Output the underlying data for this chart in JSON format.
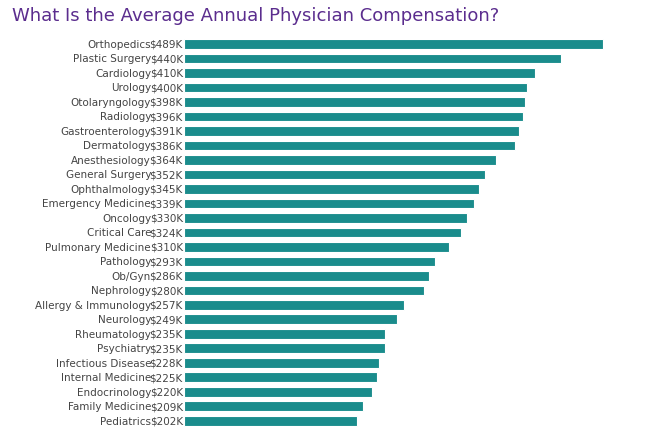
{
  "title": "What Is the Average Annual Physician Compensation?",
  "title_color": "#5B2D8E",
  "title_fontsize": 13,
  "categories": [
    "Pediatrics",
    "Family Medicine",
    "Endocrinology",
    "Internal Medicine",
    "Infectious Disease",
    "Psychiatry",
    "Rheumatology",
    "Neurology",
    "Allergy & Immunology",
    "Nephrology",
    "Ob/Gyn",
    "Pathology",
    "Pulmonary Medicine",
    "Critical Care",
    "Oncology",
    "Emergency Medicine",
    "Ophthalmology",
    "General Surgery",
    "Anesthesiology",
    "Dermatology",
    "Gastroenterology",
    "Radiology",
    "Otolaryngology",
    "Urology",
    "Cardiology",
    "Plastic Surgery",
    "Orthopedics"
  ],
  "values": [
    202,
    209,
    220,
    225,
    228,
    235,
    235,
    249,
    257,
    280,
    286,
    293,
    310,
    324,
    330,
    339,
    345,
    352,
    364,
    386,
    391,
    396,
    398,
    400,
    410,
    440,
    489
  ],
  "labels": [
    "$202K",
    "$209K",
    "$220K",
    "$225K",
    "$228K",
    "$235K",
    "$235K",
    "$249K",
    "$257K",
    "$280K",
    "$286K",
    "$293K",
    "$310K",
    "$324K",
    "$330K",
    "$339K",
    "$345K",
    "$352K",
    "$364K",
    "$386K",
    "$391K",
    "$396K",
    "$398K",
    "$400K",
    "$410K",
    "$440K",
    "$489K"
  ],
  "bar_color": "#1A8C8C",
  "background_color": "#FFFFFF",
  "label_color": "#444444",
  "label_fontsize": 7.5,
  "value_label_color": "#444444",
  "value_label_fontsize": 7.5,
  "figsize": [
    6.45,
    4.39
  ],
  "dpi": 100,
  "bar_height": 0.68,
  "xlim_max": 530
}
